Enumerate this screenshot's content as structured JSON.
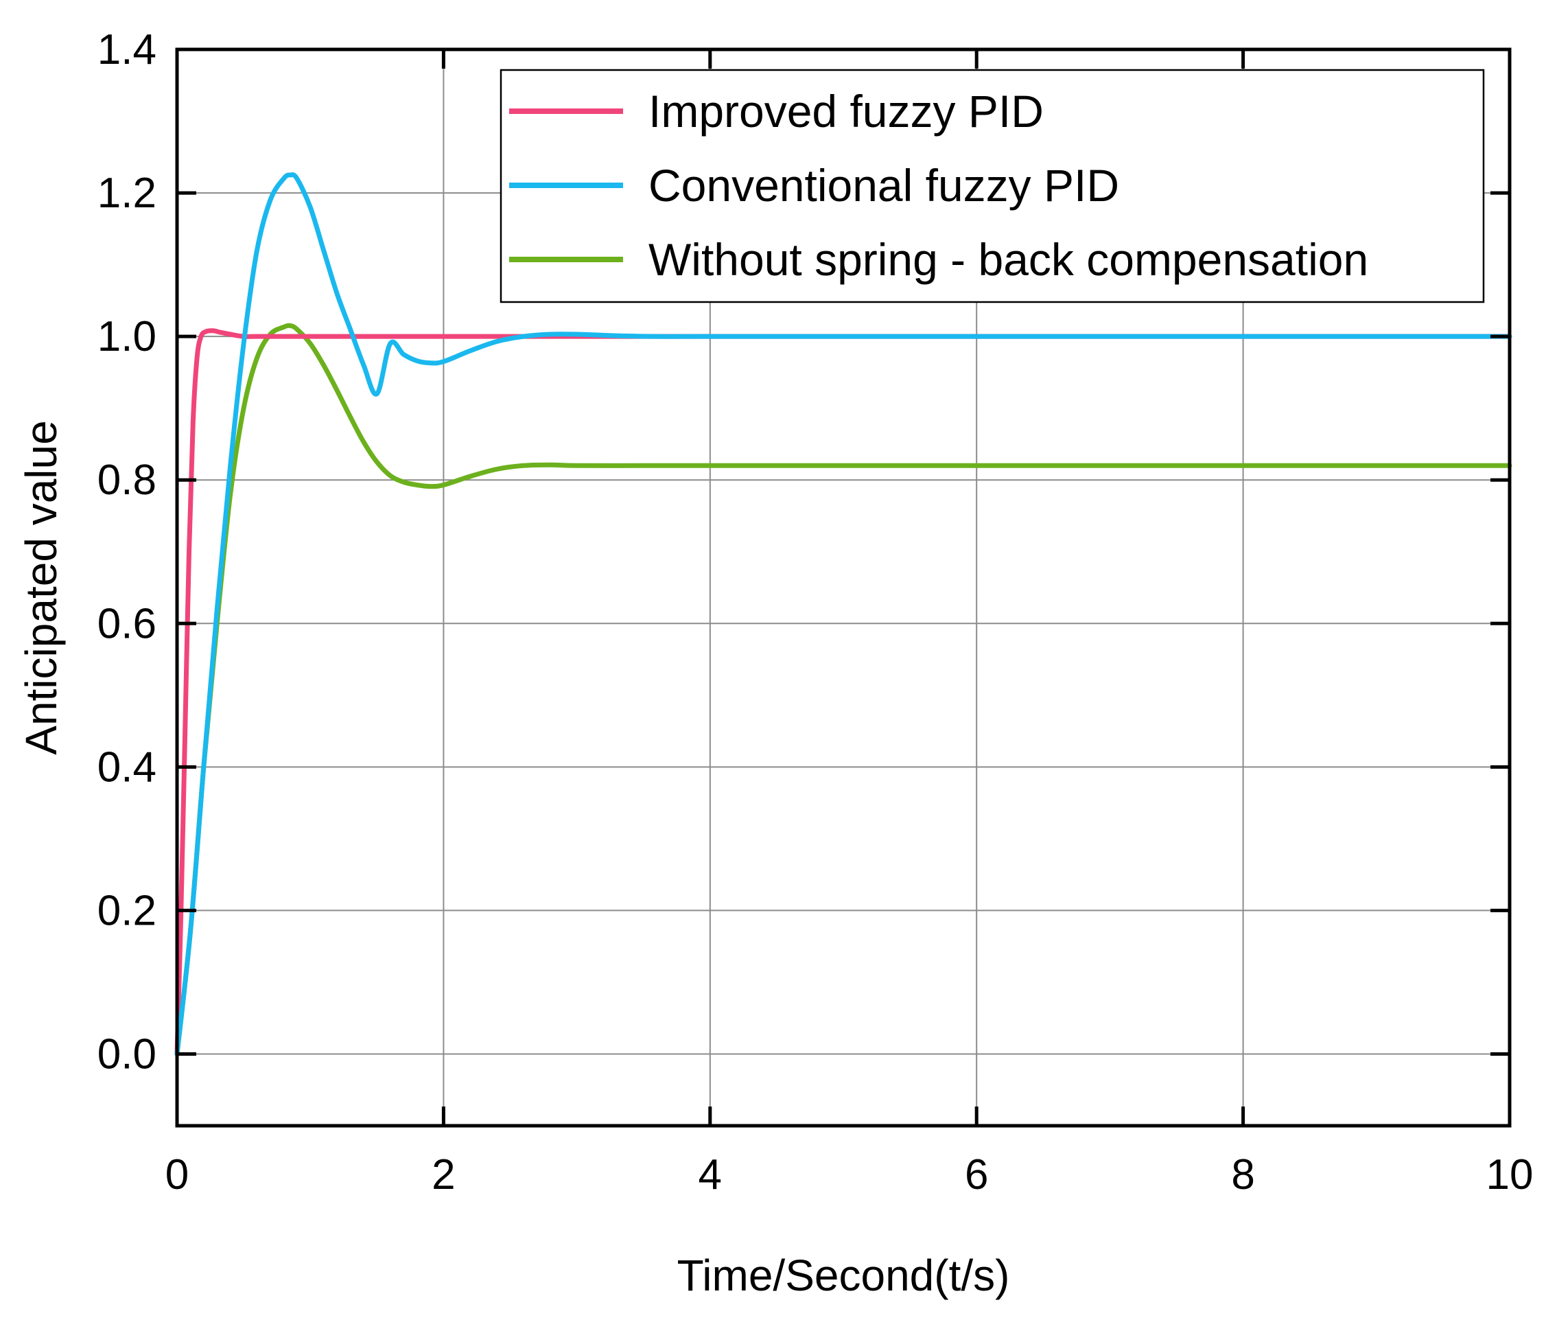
{
  "chart_data": {
    "type": "line",
    "xlabel": "Time/Second(t/s)",
    "ylabel": "Anticipated value",
    "xlim": [
      0,
      10
    ],
    "ylim": [
      -0.1,
      1.4
    ],
    "xticks": [
      0,
      2,
      4,
      6,
      8,
      10
    ],
    "xtick_labels": [
      "0",
      "2",
      "4",
      "6",
      "8",
      "10"
    ],
    "yticks": [
      0.0,
      0.2,
      0.4,
      0.6,
      0.8,
      1.0,
      1.2,
      1.4
    ],
    "ytick_labels": [
      "0.0",
      "0.2",
      "0.4",
      "0.6",
      "0.8",
      "1.0",
      "1.2",
      "1.4"
    ],
    "grid": true,
    "legend_position": "top-right",
    "series": [
      {
        "name": "Improved fuzzy PID",
        "color": "#f0457a",
        "x": [
          0,
          0.03,
          0.06,
          0.09,
          0.12,
          0.15,
          0.18,
          0.22,
          0.27,
          0.32,
          0.4,
          0.5,
          0.6,
          0.8,
          1.0,
          2.0,
          4.0,
          6.0,
          8.0,
          10.0
        ],
        "y": [
          0.0,
          0.2,
          0.45,
          0.7,
          0.88,
          0.97,
          1.0,
          1.007,
          1.008,
          1.006,
          1.003,
          1.0,
          1.0,
          1.0,
          1.0,
          1.0,
          1.0,
          1.0,
          1.0,
          1.0
        ]
      },
      {
        "name": "Conventional fuzzy PID",
        "color": "#1ab8ee",
        "x": [
          0,
          0.1,
          0.2,
          0.3,
          0.4,
          0.5,
          0.6,
          0.7,
          0.8,
          0.85,
          0.9,
          1.0,
          1.1,
          1.2,
          1.3,
          1.4,
          1.5,
          1.6,
          1.7,
          1.8,
          1.9,
          2.0,
          2.2,
          2.4,
          2.6,
          2.8,
          3.0,
          3.3,
          3.6,
          4.0,
          6.0,
          8.0,
          10.0
        ],
        "y": [
          0.0,
          0.17,
          0.4,
          0.62,
          0.82,
          0.99,
          1.12,
          1.19,
          1.22,
          1.225,
          1.22,
          1.18,
          1.12,
          1.06,
          1.01,
          0.96,
          0.92,
          0.99,
          0.975,
          0.966,
          0.963,
          0.965,
          0.98,
          0.993,
          1.0,
          1.003,
          1.003,
          1.001,
          1.0,
          1.0,
          1.0,
          1.0,
          1.0
        ]
      },
      {
        "name": "Without spring - back compensation",
        "color": "#6cb11d",
        "x": [
          0,
          0.1,
          0.2,
          0.3,
          0.4,
          0.5,
          0.6,
          0.7,
          0.8,
          0.85,
          0.9,
          1.0,
          1.1,
          1.2,
          1.3,
          1.4,
          1.5,
          1.6,
          1.7,
          1.8,
          1.9,
          2.0,
          2.2,
          2.4,
          2.6,
          2.8,
          3.0,
          3.5,
          4.0,
          6.0,
          8.0,
          10.0
        ],
        "y": [
          0.0,
          0.17,
          0.4,
          0.6,
          0.78,
          0.9,
          0.97,
          1.003,
          1.013,
          1.015,
          1.01,
          0.99,
          0.96,
          0.925,
          0.888,
          0.853,
          0.825,
          0.806,
          0.797,
          0.793,
          0.791,
          0.793,
          0.805,
          0.815,
          0.82,
          0.821,
          0.82,
          0.82,
          0.82,
          0.82,
          0.82,
          0.82
        ]
      }
    ]
  }
}
